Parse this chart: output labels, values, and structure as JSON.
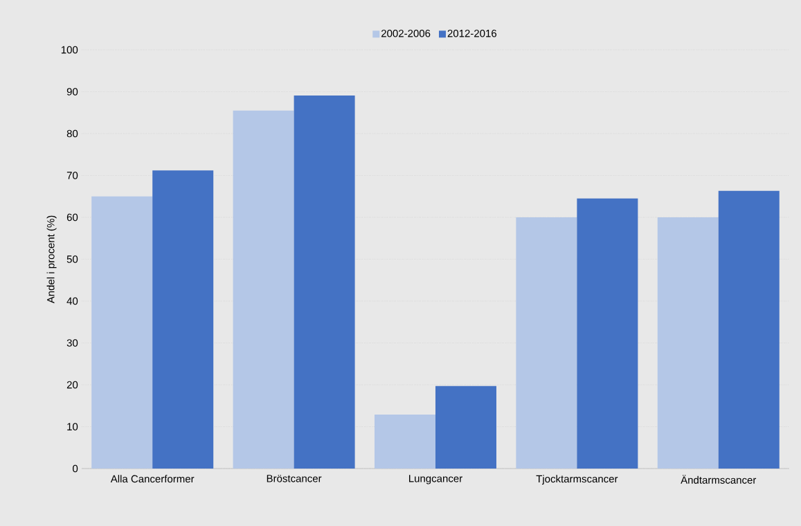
{
  "chart_data": {
    "type": "bar",
    "ylabel": "Andel i procent (%)",
    "categories": [
      "Alla Cancerformer",
      "Bröstcancer",
      "Lungcancer",
      "Tjocktarmscancer",
      "Ändtarmscancer"
    ],
    "series": [
      {
        "name": "2002-2006",
        "color": "#b4c7e7",
        "values": [
          65,
          85.5,
          12.9,
          60,
          60
        ]
      },
      {
        "name": "2012-2016",
        "color": "#4472c4",
        "values": [
          71.2,
          89.1,
          19.7,
          64.5,
          66.3
        ]
      }
    ],
    "ylim": [
      0,
      100
    ],
    "yticks": [
      0,
      10,
      20,
      30,
      40,
      50,
      60,
      70,
      80,
      90,
      100
    ],
    "grid": "y",
    "legend": "top"
  }
}
